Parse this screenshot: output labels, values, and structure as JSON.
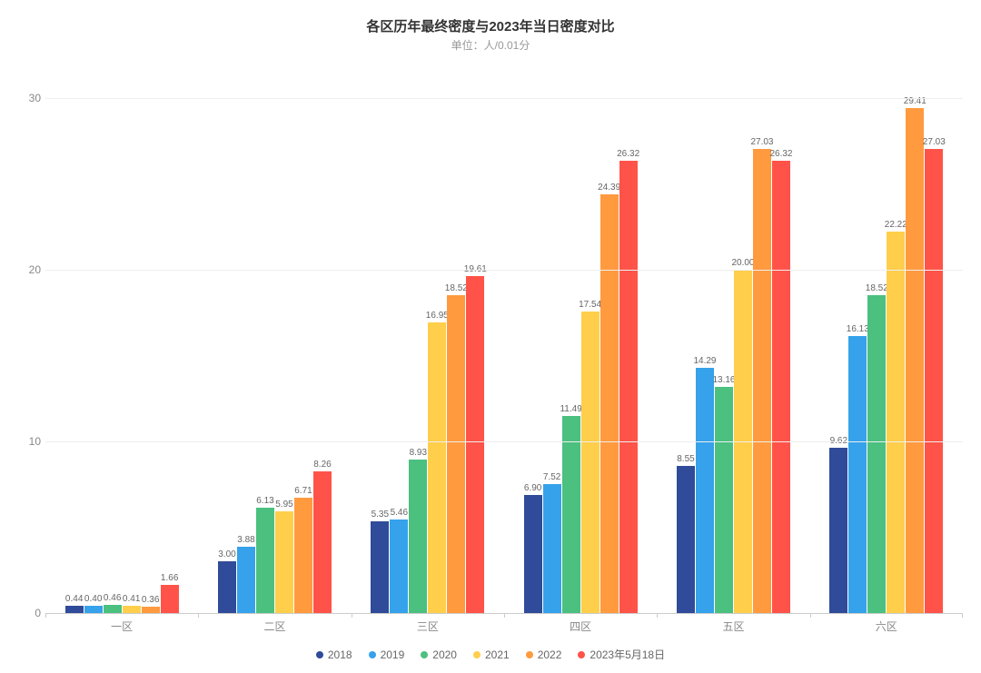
{
  "chart": {
    "type": "bar",
    "title": "各区历年最终密度与2023年当日密度对比",
    "subtitle": "单位：人/0.01分",
    "title_fontsize": 15,
    "subtitle_fontsize": 12,
    "title_color": "#333333",
    "subtitle_color": "#999999",
    "background_color": "#ffffff",
    "grid_color": "#eeeeee",
    "axis_color": "#cccccc",
    "ylim": [
      0,
      32
    ],
    "yticks": [
      0,
      10,
      20,
      30
    ],
    "label_fontsize": 10,
    "categories": [
      "一区",
      "二区",
      "三区",
      "四区",
      "五区",
      "六区"
    ],
    "series": [
      {
        "name": "2018",
        "color": "#2f4b99",
        "values": [
          0.44,
          3.0,
          5.35,
          6.9,
          8.55,
          9.62
        ]
      },
      {
        "name": "2019",
        "color": "#35a2eb",
        "values": [
          0.4,
          3.88,
          5.46,
          7.52,
          14.29,
          16.13
        ]
      },
      {
        "name": "2020",
        "color": "#4bc07f",
        "values": [
          0.46,
          6.13,
          8.93,
          11.49,
          13.16,
          18.52
        ]
      },
      {
        "name": "2021",
        "color": "#ffce4b",
        "values": [
          0.41,
          5.95,
          16.95,
          17.54,
          20.0,
          22.22
        ]
      },
      {
        "name": "2022",
        "color": "#ff9a3f",
        "values": [
          0.36,
          6.71,
          18.52,
          24.39,
          27.03,
          29.41
        ]
      },
      {
        "name": "2023年5月18日",
        "color": "#ff5349",
        "values": [
          1.66,
          8.26,
          19.61,
          26.32,
          26.32,
          27.03
        ]
      }
    ],
    "bar_labels": [
      [
        "0.44",
        "0.40",
        "0.46",
        "0.41",
        "0.36",
        "1.66"
      ],
      [
        "3.00",
        "3.88",
        "6.13",
        "5.95",
        "6.71",
        "8.26"
      ],
      [
        "5.35",
        "5.46",
        "8.93",
        "16.95",
        "18.52",
        "19.61"
      ],
      [
        "6.90",
        "7.52",
        "11.49",
        "17.54",
        "24.39",
        "26.32"
      ],
      [
        "8.55",
        "14.29",
        "13.16",
        "20.00",
        "27.03",
        "26.32"
      ],
      [
        "9.62",
        "16.13",
        "18.52",
        "22.22",
        "29.41",
        "27.03"
      ]
    ]
  }
}
